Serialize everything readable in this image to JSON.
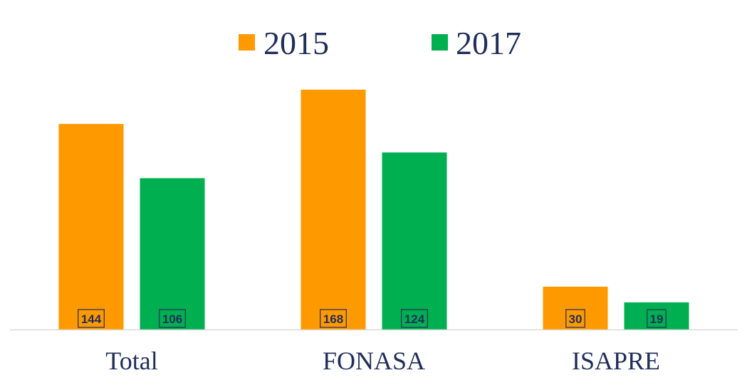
{
  "chart_data": {
    "type": "bar",
    "categories": [
      "Total",
      "FONASA",
      "ISAPRE"
    ],
    "series": [
      {
        "name": "2015",
        "values": [
          144,
          168,
          30
        ],
        "color": "#ff9900"
      },
      {
        "name": "2017",
        "values": [
          106,
          124,
          19
        ],
        "color": "#00b050"
      }
    ],
    "title": "",
    "xlabel": "",
    "ylabel": "",
    "ylim": [
      0,
      180
    ],
    "legend_position": "top-center",
    "grid": false,
    "data_labels": true,
    "text_color": "#1f2d5a",
    "axis_color": "#d9d9d9"
  }
}
